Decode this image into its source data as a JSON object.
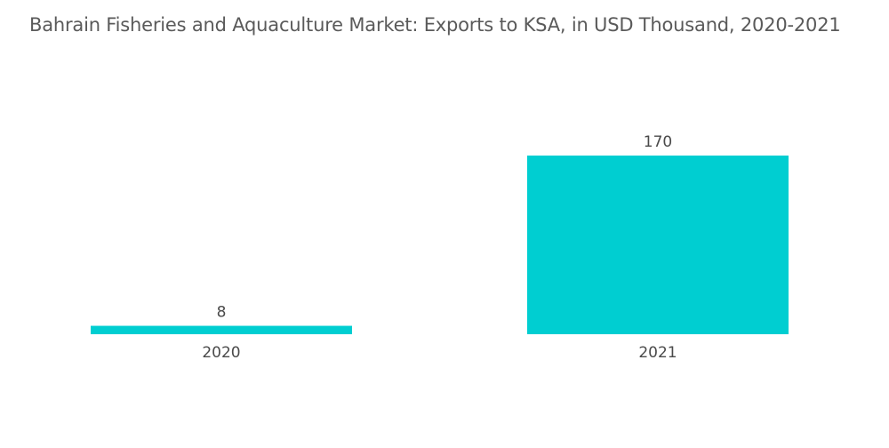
{
  "chart_data": {
    "type": "bar",
    "title": "Bahrain Fisheries and Aquaculture Market: Exports to KSA, in USD Thousand, 2020-2021",
    "categories": [
      "2020",
      "2021"
    ],
    "values": [
      8,
      170
    ],
    "data_labels": [
      "8",
      "170"
    ],
    "xlabel": "",
    "ylabel": "",
    "ylim": [
      0,
      170
    ],
    "grid": false,
    "legend": "none",
    "bar_color": "#00ced1"
  }
}
